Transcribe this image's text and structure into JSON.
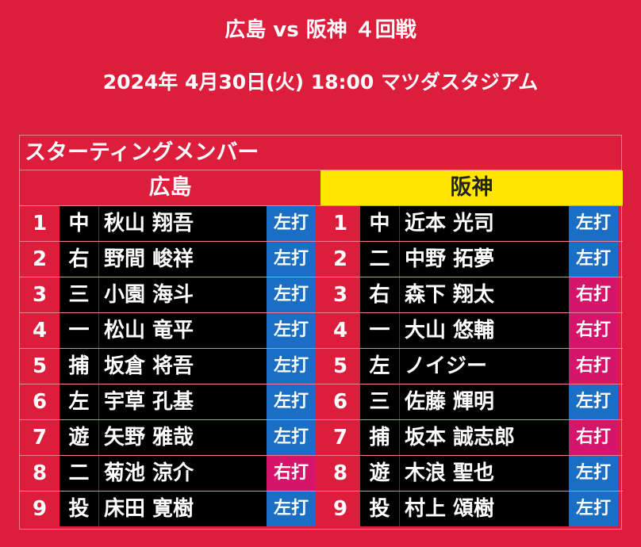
{
  "header": {
    "title": "広島 vs 阪神 ４回戦",
    "subtitle": "2024年 4月30日(火) 18:00 マツダスタジアム"
  },
  "panel_title": "スターティングメンバー",
  "colors": {
    "background": "#DC1E3C",
    "away_header": "#FFE600",
    "left_bat": "#1A6FC4",
    "right_bat": "#D4156A"
  },
  "home": {
    "team": "広島",
    "lineup": [
      {
        "order": "1",
        "pos": "中",
        "name": "秋山 翔吾",
        "bat": "左打"
      },
      {
        "order": "2",
        "pos": "右",
        "name": "野間 峻祥",
        "bat": "左打"
      },
      {
        "order": "3",
        "pos": "三",
        "name": "小園 海斗",
        "bat": "左打"
      },
      {
        "order": "4",
        "pos": "一",
        "name": "松山 竜平",
        "bat": "左打"
      },
      {
        "order": "5",
        "pos": "捕",
        "name": "坂倉 将吾",
        "bat": "左打"
      },
      {
        "order": "6",
        "pos": "左",
        "name": "宇草 孔基",
        "bat": "左打"
      },
      {
        "order": "7",
        "pos": "遊",
        "name": "矢野 雅哉",
        "bat": "左打"
      },
      {
        "order": "8",
        "pos": "二",
        "name": "菊池 涼介",
        "bat": "右打"
      },
      {
        "order": "9",
        "pos": "投",
        "name": "床田 寛樹",
        "bat": "左打"
      }
    ]
  },
  "away": {
    "team": "阪神",
    "lineup": [
      {
        "order": "1",
        "pos": "中",
        "name": "近本 光司",
        "bat": "左打"
      },
      {
        "order": "2",
        "pos": "二",
        "name": "中野 拓夢",
        "bat": "左打"
      },
      {
        "order": "3",
        "pos": "右",
        "name": "森下 翔太",
        "bat": "右打"
      },
      {
        "order": "4",
        "pos": "一",
        "name": "大山 悠輔",
        "bat": "右打"
      },
      {
        "order": "5",
        "pos": "左",
        "name": "ノイジー",
        "bat": "右打"
      },
      {
        "order": "6",
        "pos": "三",
        "name": "佐藤 輝明",
        "bat": "左打"
      },
      {
        "order": "7",
        "pos": "捕",
        "name": "坂本 誠志郎",
        "bat": "右打"
      },
      {
        "order": "8",
        "pos": "遊",
        "name": "木浪 聖也",
        "bat": "左打"
      },
      {
        "order": "9",
        "pos": "投",
        "name": "村上 頌樹",
        "bat": "左打"
      }
    ]
  }
}
